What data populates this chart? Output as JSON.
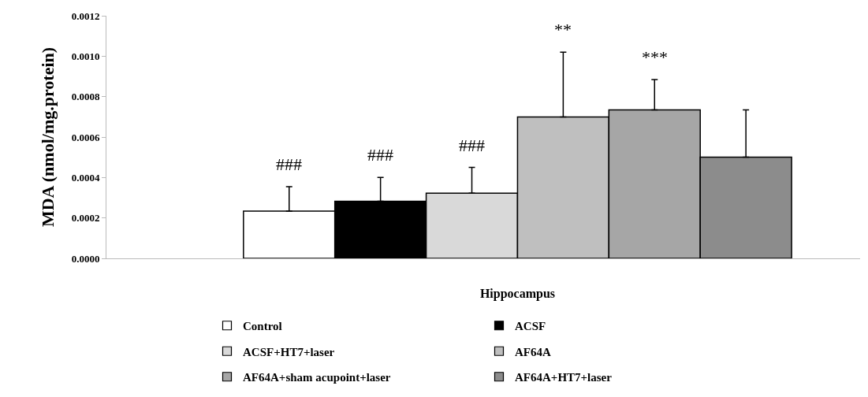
{
  "chart_data": {
    "type": "bar",
    "ylabel": "MDA (nmol/mg.protein)",
    "categories": [
      "Hippocampus"
    ],
    "series": [
      {
        "name": "Control",
        "color": "#ffffff",
        "values": [
          0.000234
        ],
        "errors": [
          [
            0.000234,
            0.000355
          ]
        ]
      },
      {
        "name": "ACSF",
        "color": "#000000",
        "values": [
          0.000282
        ],
        "errors": [
          [
            0.000282,
            0.0004
          ]
        ]
      },
      {
        "name": "ACSF+HT7+laser",
        "color": "#d9d9d9",
        "values": [
          0.000322
        ],
        "errors": [
          [
            0.000322,
            0.00045
          ]
        ]
      },
      {
        "name": "AF64A",
        "color": "#bfbfbf",
        "values": [
          0.000699
        ],
        "errors": [
          [
            0.000699,
            0.00102
          ]
        ]
      },
      {
        "name": "AF64A+sham acupoint+laser",
        "color": "#a6a6a6",
        "values": [
          0.000734
        ],
        "errors": [
          [
            0.000734,
            0.000884
          ]
        ]
      },
      {
        "name": "AF64A+HT7+laser",
        "color": "#8c8c8c",
        "values": [
          0.000501
        ],
        "errors": [
          [
            0.000501,
            0.000734
          ]
        ]
      }
    ],
    "annotations": [
      "###",
      "###",
      "###",
      "**",
      "***"
    ],
    "ylim": [
      0,
      0.0012
    ],
    "yticks": [
      {
        "value": 0,
        "label": "0.0000"
      },
      {
        "value": 0.0002,
        "label": "0.0002"
      },
      {
        "value": 0.0004,
        "label": "0.0004"
      },
      {
        "value": 0.0006,
        "label": "0.0006"
      },
      {
        "value": 0.0008,
        "label": "0.0008"
      },
      {
        "value": 0.001,
        "label": "0.0010"
      },
      {
        "value": 0.0012,
        "label": "0.0012"
      }
    ],
    "legend": "bottom"
  }
}
